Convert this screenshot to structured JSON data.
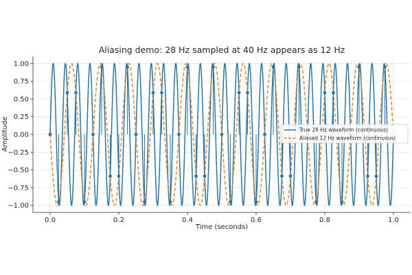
{
  "chart_data": {
    "type": "line",
    "title": "Aliasing demo: 28 Hz sampled at 40 Hz appears as 12 Hz",
    "xlabel": "Time (seconds)",
    "ylabel": "Amplitude",
    "xlim": [
      -0.05,
      1.05
    ],
    "ylim": [
      -1.1,
      1.1
    ],
    "xticks": [
      0.0,
      0.2,
      0.4,
      0.6,
      0.8,
      1.0
    ],
    "xtick_labels": [
      "0.0",
      "0.2",
      "0.4",
      "0.6",
      "0.8",
      "1.0"
    ],
    "yticks": [
      -1.0,
      -0.75,
      -0.5,
      -0.25,
      0.0,
      0.25,
      0.5,
      0.75,
      1.0
    ],
    "ytick_labels": [
      "−1.00",
      "−0.75",
      "−0.50",
      "−0.25",
      "0.00",
      "0.25",
      "0.50",
      "0.75",
      "1.00"
    ],
    "grid": true,
    "legend_position": "center-right",
    "series": [
      {
        "name": "True 28 Hz waveform (continuous)",
        "function": "sin",
        "frequency_hz": 28,
        "amplitude": 1,
        "t_start": 0,
        "t_end": 1,
        "color": "#1f77b4",
        "line_style": "solid"
      },
      {
        "name": "Aliased 12 Hz waveform (continuous)",
        "function": "-sin",
        "frequency_hz": 12,
        "amplitude": 1,
        "t_start": 0,
        "t_end": 1,
        "color": "#ff7f0e",
        "line_style": "dashed"
      }
    ],
    "samples": {
      "sample_rate_hz": 40,
      "t_start": 0,
      "t_end": 1,
      "signal_frequency_hz": 28,
      "color": "#1f77b4",
      "marker": "circle",
      "stems": true
    }
  }
}
